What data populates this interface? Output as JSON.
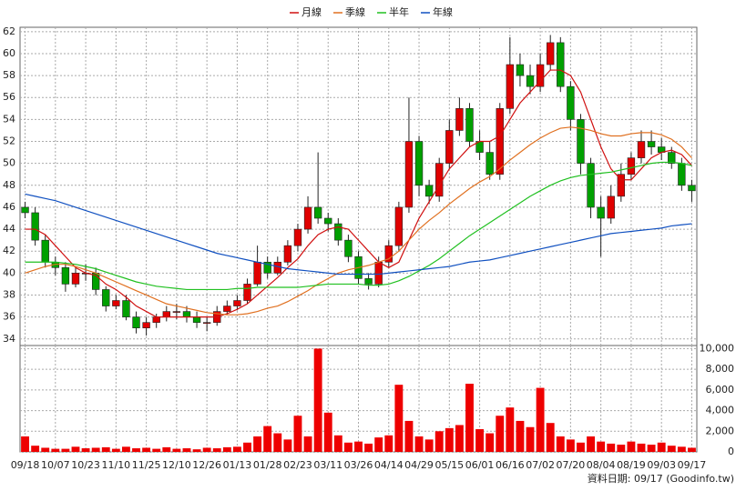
{
  "chart_data": [
    {
      "type": "candlestick",
      "categories": [
        "09/18",
        null,
        null,
        "10/07",
        null,
        null,
        "10/23",
        null,
        null,
        "11/10",
        null,
        null,
        "11/25",
        null,
        null,
        "12/10",
        null,
        null,
        "12/26",
        null,
        null,
        "01/13",
        null,
        null,
        "01/28",
        null,
        null,
        "02/23",
        null,
        null,
        "03/11",
        null,
        null,
        "03/26",
        null,
        null,
        "04/14",
        null,
        null,
        "04/29",
        null,
        null,
        "05/15",
        null,
        null,
        "06/01",
        null,
        null,
        "06/16",
        null,
        null,
        "07/02",
        null,
        null,
        "07/20",
        null,
        null,
        "08/04",
        null,
        null,
        "08/19",
        null,
        null,
        "09/03",
        null,
        null,
        "09/17"
      ],
      "open": [
        46,
        45.5,
        43,
        41,
        40.5,
        39,
        40,
        40,
        38.5,
        37,
        37.5,
        36,
        35,
        35.5,
        36,
        36.5,
        36.5,
        36,
        35.5,
        35.5,
        36.5,
        37,
        37.5,
        39,
        41,
        40,
        41,
        42.5,
        44,
        46,
        45,
        44.5,
        43,
        41.5,
        39.5,
        39,
        41,
        42.5,
        46,
        52,
        48,
        47,
        50,
        53,
        55,
        52,
        51,
        49,
        55,
        59,
        58,
        57,
        59,
        61,
        57,
        54,
        50,
        46,
        45,
        47,
        49,
        50.5,
        52,
        51.5,
        51,
        50,
        48
      ],
      "high": [
        46.5,
        46,
        43.5,
        41.5,
        41,
        40.5,
        40.8,
        40.5,
        38.8,
        38,
        38,
        36.5,
        36,
        36.3,
        37,
        37.2,
        37,
        36.5,
        36,
        37,
        37.5,
        38,
        39.5,
        42.5,
        41.5,
        41.5,
        43,
        44.5,
        47,
        51,
        45.5,
        45,
        43.5,
        42,
        40,
        41.5,
        43,
        46.5,
        56,
        52.5,
        48.5,
        50.5,
        54,
        56,
        55.5,
        53,
        52,
        55.5,
        61.5,
        60,
        59,
        60,
        61.7,
        61.5,
        57.5,
        54.5,
        50.5,
        47,
        48,
        50,
        51,
        53,
        53,
        52.3,
        51.5,
        50.5,
        48.5
      ],
      "low": [
        45,
        42.5,
        40.5,
        39.8,
        38.3,
        38.7,
        39.3,
        38,
        36.5,
        36.7,
        35.7,
        34.5,
        34.3,
        35,
        35.6,
        35.8,
        35.5,
        35,
        34.7,
        35.2,
        36.2,
        36.6,
        37.2,
        38.8,
        39.5,
        39.8,
        40.7,
        42,
        43.6,
        44.5,
        43.8,
        42.5,
        41,
        39,
        38.5,
        38.7,
        40.5,
        42,
        45.5,
        47,
        46.3,
        46.5,
        49.5,
        52.5,
        51.5,
        50.3,
        48.5,
        48.5,
        54.5,
        57,
        56.3,
        56.5,
        58.5,
        56.5,
        53,
        49,
        45,
        41.5,
        44.5,
        46.5,
        48.5,
        50,
        50.8,
        50.3,
        49.5,
        47.5,
        46.5
      ],
      "close": [
        45.5,
        43,
        41,
        40.5,
        39,
        40,
        40,
        38.5,
        37,
        37.5,
        36,
        35,
        35.5,
        36,
        36.5,
        36.5,
        36,
        35.5,
        35.5,
        36.5,
        37,
        37.5,
        39,
        41,
        40,
        41,
        42.5,
        44,
        46,
        45,
        44.5,
        43,
        41.5,
        39.5,
        39,
        41,
        42.5,
        46,
        52,
        48,
        47,
        50,
        53,
        55,
        52,
        51,
        49,
        55,
        59,
        58,
        57,
        59,
        61,
        57,
        54,
        50,
        46,
        45,
        47,
        49,
        50.5,
        52,
        51.5,
        51,
        50,
        48,
        47.5
      ],
      "up_color": "#e00000",
      "down_color": "#00a000",
      "series": [
        {
          "name": "月線",
          "color": "#d01010",
          "values": [
            44,
            44,
            43.5,
            42.5,
            41.5,
            40.5,
            40,
            39.8,
            39,
            38.5,
            37.8,
            37,
            36.5,
            36,
            36,
            36,
            36,
            36,
            36,
            36,
            36.3,
            36.7,
            37.2,
            38,
            38.8,
            39.6,
            40.5,
            41.3,
            42.5,
            43.5,
            44,
            44.2,
            44,
            43,
            42,
            41,
            40.5,
            41,
            43,
            45,
            46.5,
            48,
            49.5,
            50.5,
            51.5,
            52,
            52,
            52.5,
            54,
            55.5,
            56.5,
            57.5,
            58.5,
            58.5,
            58,
            56.5,
            54,
            51.5,
            49.5,
            48.5,
            48.5,
            49.5,
            50.5,
            51,
            51.2,
            50.8,
            49.8
          ]
        },
        {
          "name": "季線",
          "color": "#e07020",
          "values": [
            40,
            40.3,
            40.6,
            40.8,
            40.8,
            40.6,
            40.3,
            40,
            39.6,
            39.2,
            38.8,
            38.4,
            38,
            37.6,
            37.2,
            37,
            36.8,
            36.6,
            36.4,
            36.3,
            36.2,
            36.2,
            36.3,
            36.5,
            36.8,
            37,
            37.4,
            37.9,
            38.4,
            39,
            39.5,
            40,
            40.3,
            40.5,
            40.7,
            41,
            41.3,
            42,
            43,
            44,
            44.8,
            45.5,
            46.3,
            47,
            47.7,
            48.3,
            48.8,
            49.5,
            50.3,
            51,
            51.7,
            52.3,
            52.8,
            53.2,
            53.3,
            53.2,
            53,
            52.7,
            52.5,
            52.5,
            52.7,
            52.8,
            52.8,
            52.6,
            52.2,
            51.5,
            50.5
          ]
        },
        {
          "name": "半年",
          "color": "#20c020",
          "values": [
            41,
            41,
            41,
            41,
            40.9,
            40.8,
            40.6,
            40.4,
            40.1,
            39.8,
            39.5,
            39.2,
            39,
            38.8,
            38.7,
            38.6,
            38.5,
            38.5,
            38.5,
            38.5,
            38.5,
            38.6,
            38.6,
            38.7,
            38.7,
            38.7,
            38.7,
            38.7,
            38.8,
            38.9,
            39,
            39,
            39,
            39,
            38.9,
            38.9,
            39,
            39.3,
            39.7,
            40.2,
            40.7,
            41.3,
            42,
            42.7,
            43.4,
            44,
            44.6,
            45.2,
            45.8,
            46.4,
            47,
            47.5,
            48,
            48.4,
            48.7,
            48.9,
            49,
            49.1,
            49.2,
            49.4,
            49.6,
            49.8,
            50,
            50.1,
            50.1,
            50,
            49.8
          ]
        },
        {
          "name": "年線",
          "color": "#1050c0",
          "values": [
            47.2,
            47,
            46.8,
            46.6,
            46.3,
            46,
            45.7,
            45.4,
            45.1,
            44.8,
            44.5,
            44.2,
            43.9,
            43.6,
            43.3,
            43,
            42.7,
            42.4,
            42.1,
            41.8,
            41.6,
            41.4,
            41.2,
            41,
            40.8,
            40.6,
            40.4,
            40.3,
            40.2,
            40.1,
            40,
            39.9,
            39.9,
            39.9,
            39.9,
            39.9,
            40,
            40.1,
            40.2,
            40.3,
            40.4,
            40.5,
            40.6,
            40.8,
            41,
            41.1,
            41.2,
            41.4,
            41.6,
            41.8,
            42,
            42.2,
            42.4,
            42.6,
            42.8,
            43,
            43.2,
            43.4,
            43.6,
            43.7,
            43.8,
            43.9,
            44,
            44.1,
            44.3,
            44.4,
            44.5
          ]
        }
      ],
      "ylim": [
        33.4,
        62.4
      ],
      "yticks": [
        34,
        36,
        38,
        40,
        42,
        44,
        46,
        48,
        50,
        52,
        54,
        56,
        58,
        60,
        62
      ],
      "grid": true
    },
    {
      "type": "bar",
      "values": [
        1500,
        600,
        400,
        300,
        300,
        500,
        350,
        400,
        450,
        300,
        500,
        350,
        400,
        300,
        450,
        300,
        350,
        250,
        400,
        350,
        450,
        500,
        900,
        1500,
        2500,
        1800,
        1200,
        3500,
        1500,
        10000,
        3800,
        1600,
        900,
        1000,
        800,
        1400,
        1600,
        6500,
        3000,
        1500,
        1200,
        2000,
        2300,
        2600,
        6600,
        2200,
        1800,
        3500,
        4300,
        3000,
        2400,
        6200,
        2800,
        1500,
        1200,
        900,
        1500,
        1000,
        800,
        700,
        1000,
        800,
        700,
        900,
        600,
        500,
        400
      ],
      "color": "#ee0000",
      "ylim": [
        0,
        10300
      ],
      "yticks": [
        0,
        {
          "value": 2000,
          "label": "2,000"
        },
        {
          "value": 4000,
          "label": "4,000"
        },
        {
          "value": 6000,
          "label": "6,000"
        },
        {
          "value": 8000,
          "label": "8,000"
        },
        {
          "value": 10000,
          "label": "10,000"
        }
      ],
      "grid": true
    }
  ],
  "footer": "資料日期: 09/17 (Goodinfo.tw)"
}
